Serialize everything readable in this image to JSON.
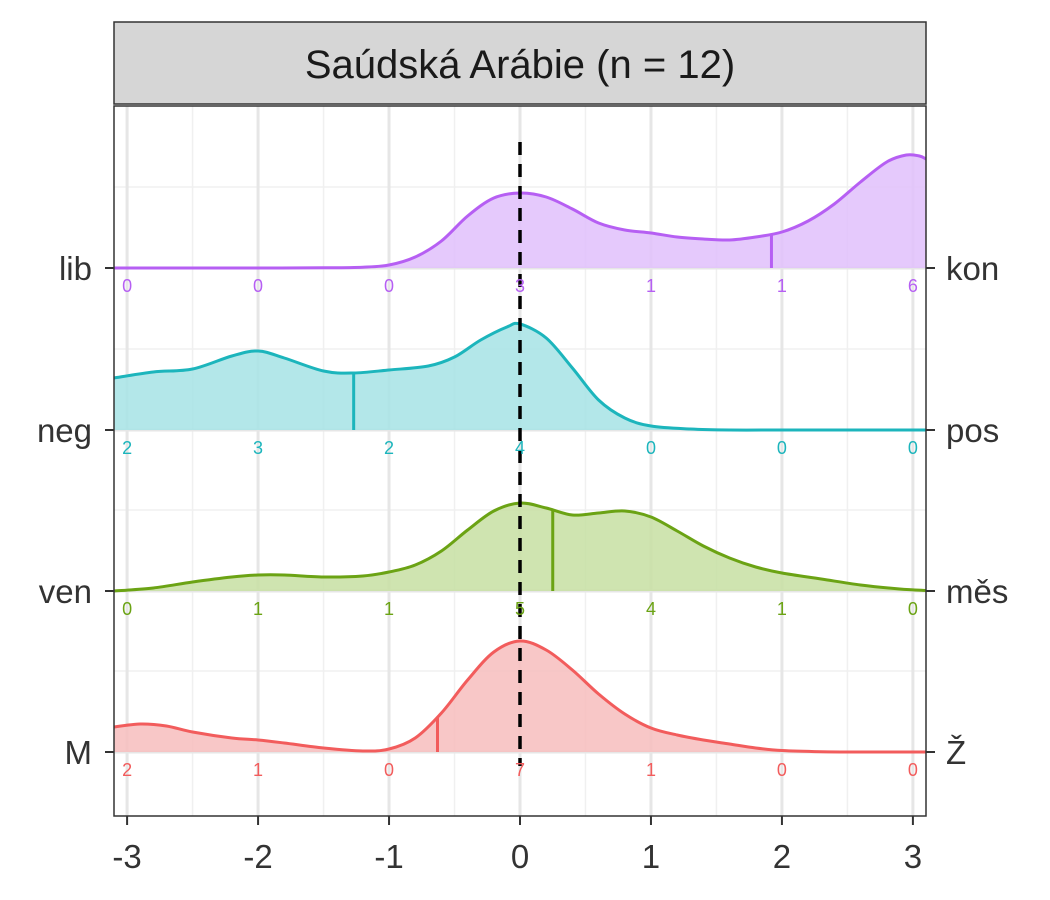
{
  "chart_data": {
    "type": "area",
    "facet_title": "Saúdská Arábie (n = 12)",
    "xlim": [
      -3.1,
      3.1
    ],
    "x_ticks": [
      "-3",
      "-2",
      "-1",
      "0",
      "1",
      "2",
      "3"
    ],
    "x_tick_values": [
      -3,
      -2,
      -1,
      0,
      1,
      2,
      3
    ],
    "reference_line_x": 0,
    "grid": true,
    "count_positions": [
      -3,
      -2,
      -1,
      0,
      1,
      2,
      3
    ],
    "series": [
      {
        "left_label": "lib",
        "right_label": "kon",
        "color": "#B65FF3",
        "fill": "#E0BFFB",
        "mean": 1.92,
        "counts": [
          "0",
          "0",
          "0",
          "3",
          "1",
          "1",
          "6"
        ],
        "density_x": [
          -3.1,
          -2.5,
          -2,
          -1.5,
          -1.2,
          -1,
          -0.8,
          -0.6,
          -0.4,
          -0.2,
          0,
          0.2,
          0.4,
          0.6,
          0.8,
          1,
          1.2,
          1.4,
          1.6,
          1.8,
          2,
          2.2,
          2.4,
          2.6,
          2.8,
          2.95,
          3.05,
          3.1
        ],
        "density_y": [
          0,
          0,
          0,
          0.002,
          0.008,
          0.03,
          0.11,
          0.27,
          0.52,
          0.7,
          0.75,
          0.71,
          0.59,
          0.45,
          0.38,
          0.35,
          0.31,
          0.29,
          0.28,
          0.31,
          0.36,
          0.47,
          0.64,
          0.86,
          1.06,
          1.13,
          1.12,
          1.09
        ]
      },
      {
        "left_label": "neg",
        "right_label": "pos",
        "color": "#1CB5BC",
        "fill": "#A6E3E5",
        "mean": -1.27,
        "counts": [
          "2",
          "3",
          "2",
          "4",
          "0",
          "0",
          "0"
        ],
        "density_x": [
          -3.1,
          -2.8,
          -2.5,
          -2.2,
          -2,
          -1.8,
          -1.5,
          -1.27,
          -1,
          -0.7,
          -0.5,
          -0.3,
          -0.1,
          0,
          0.2,
          0.4,
          0.6,
          0.8,
          1,
          1.3,
          1.6,
          2,
          2.5,
          3.1
        ],
        "density_y": [
          0.52,
          0.58,
          0.61,
          0.74,
          0.79,
          0.72,
          0.59,
          0.57,
          0.6,
          0.64,
          0.73,
          0.9,
          1.03,
          1.06,
          0.92,
          0.62,
          0.3,
          0.12,
          0.04,
          0.01,
          0,
          0,
          0,
          0
        ]
      },
      {
        "left_label": "ven",
        "right_label": "měs",
        "color": "#6BA314",
        "fill": "#C7DFA2",
        "mean": 0.25,
        "counts": [
          "0",
          "1",
          "1",
          "5",
          "4",
          "1",
          "0"
        ],
        "density_x": [
          -3.1,
          -2.8,
          -2.5,
          -2.2,
          -2,
          -1.8,
          -1.5,
          -1.2,
          -1,
          -0.8,
          -0.6,
          -0.4,
          -0.2,
          0,
          0.2,
          0.4,
          0.6,
          0.8,
          1,
          1.2,
          1.4,
          1.6,
          1.8,
          2,
          2.3,
          2.6,
          2.9,
          3.1
        ],
        "density_y": [
          0,
          0.03,
          0.09,
          0.14,
          0.16,
          0.16,
          0.14,
          0.15,
          0.19,
          0.26,
          0.4,
          0.61,
          0.8,
          0.88,
          0.83,
          0.76,
          0.78,
          0.8,
          0.74,
          0.6,
          0.45,
          0.33,
          0.24,
          0.18,
          0.12,
          0.06,
          0.02,
          0.005
        ]
      },
      {
        "left_label": "M",
        "right_label": "Ž",
        "color": "#F25C5C",
        "fill": "#F7BDBD",
        "mean": -0.63,
        "counts": [
          "2",
          "1",
          "0",
          "7",
          "1",
          "0",
          "0"
        ],
        "density_x": [
          -3.1,
          -2.9,
          -2.7,
          -2.5,
          -2.2,
          -2,
          -1.8,
          -1.5,
          -1.2,
          -1,
          -0.8,
          -0.6,
          -0.4,
          -0.2,
          0,
          0.2,
          0.4,
          0.6,
          0.8,
          1,
          1.2,
          1.4,
          1.6,
          1.8,
          2,
          2.3,
          2.6,
          3.1
        ],
        "density_y": [
          0.25,
          0.28,
          0.26,
          0.2,
          0.14,
          0.12,
          0.09,
          0.04,
          0.01,
          0.03,
          0.14,
          0.39,
          0.72,
          1.0,
          1.11,
          1.02,
          0.82,
          0.58,
          0.38,
          0.24,
          0.17,
          0.12,
          0.08,
          0.04,
          0.015,
          0.003,
          0,
          0
        ]
      }
    ]
  }
}
